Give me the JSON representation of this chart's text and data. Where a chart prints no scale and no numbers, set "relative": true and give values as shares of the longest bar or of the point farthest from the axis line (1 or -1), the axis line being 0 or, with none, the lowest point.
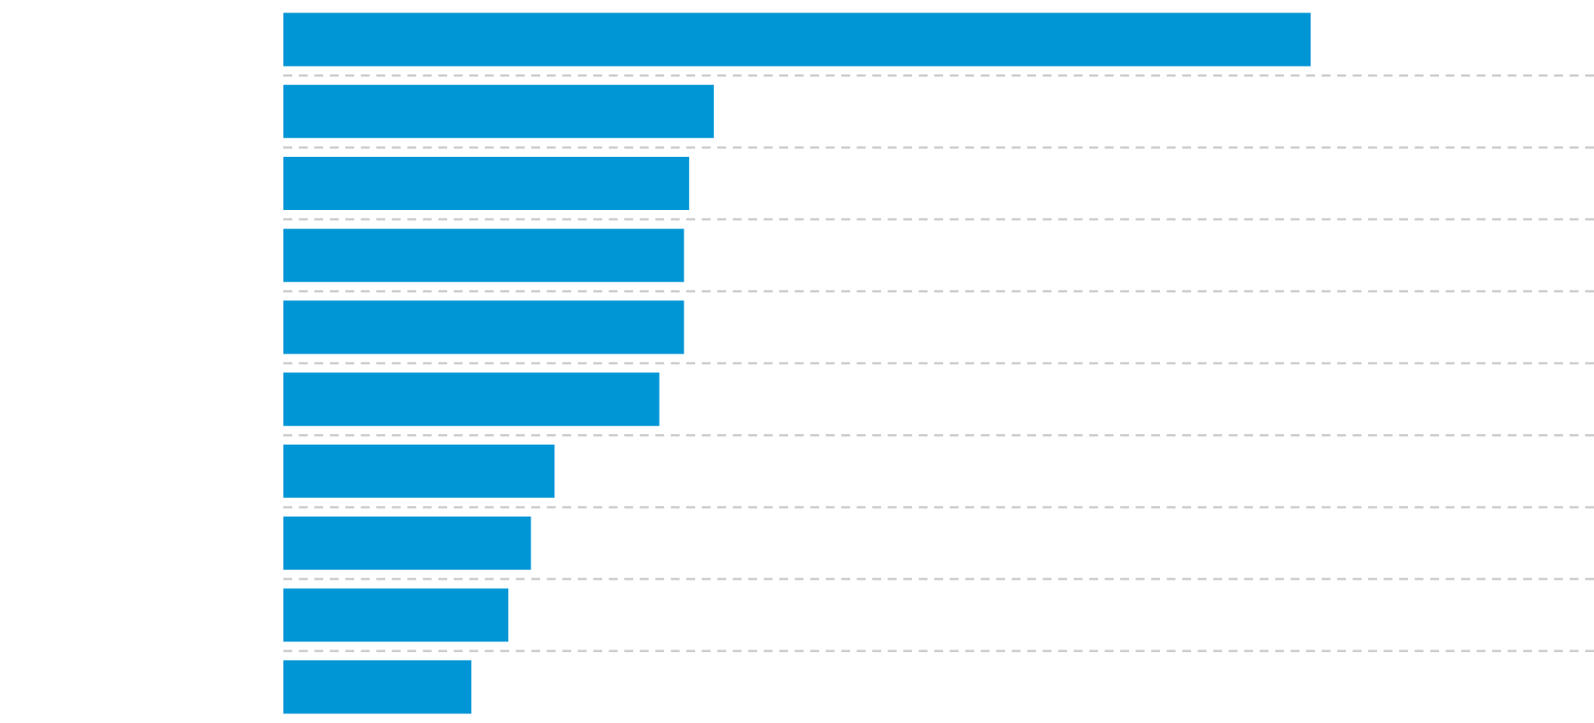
{
  "chart_data": {
    "type": "bar",
    "orientation": "horizontal",
    "relative": true,
    "categories": [
      null,
      null,
      null,
      null,
      null,
      null,
      null,
      null,
      null,
      null
    ],
    "values": [
      1,
      0.419,
      0.395,
      0.39,
      0.39,
      0.366,
      0.264,
      0.241,
      0.219,
      0.183
    ],
    "color": "#0096d6",
    "grid": "y"
  }
}
